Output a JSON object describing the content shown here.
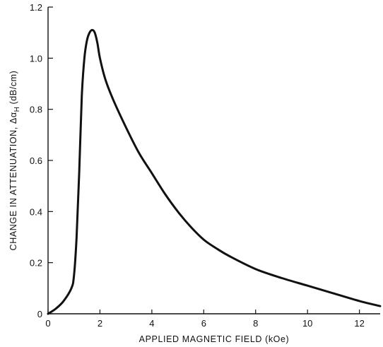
{
  "chart_data": {
    "type": "line",
    "title": "",
    "xlabel": "APPLIED MAGNETIC FIELD (kOe)",
    "ylabel": "CHANGE IN ATTENUATION, Δα",
    "ylabel_subscript": "H",
    "ylabel_unit": "(dB/cm)",
    "xlim": [
      0,
      12.8
    ],
    "ylim": [
      0,
      1.2
    ],
    "xticks": [
      0,
      2,
      4,
      6,
      8,
      10,
      12
    ],
    "xtick_labels": [
      "0",
      "2",
      "4",
      "6",
      "8",
      "10",
      "12"
    ],
    "yticks": [
      0,
      0.2,
      0.4,
      0.6,
      0.8,
      1.0,
      1.2
    ],
    "ytick_labels": [
      "0",
      "0.2",
      "0.4",
      "0.6",
      "0.8",
      "1.0",
      "1.2"
    ],
    "grid": false,
    "series": [
      {
        "x": [
          0,
          0.3,
          0.6,
          0.9,
          1.0,
          1.1,
          1.2,
          1.3,
          1.4,
          1.5,
          1.6,
          1.7,
          1.8,
          1.9,
          2.0,
          2.2,
          2.5,
          3.0,
          3.5,
          4.0,
          4.5,
          5.0,
          5.5,
          6.0,
          6.5,
          7.0,
          8.0,
          9.0,
          10.0,
          11.0,
          12.0,
          12.8
        ],
        "y": [
          0,
          0.02,
          0.05,
          0.1,
          0.15,
          0.3,
          0.55,
          0.85,
          1.0,
          1.07,
          1.1,
          1.11,
          1.1,
          1.06,
          1.0,
          0.92,
          0.84,
          0.73,
          0.63,
          0.55,
          0.47,
          0.4,
          0.34,
          0.29,
          0.255,
          0.225,
          0.175,
          0.14,
          0.11,
          0.08,
          0.05,
          0.03
        ]
      }
    ]
  }
}
